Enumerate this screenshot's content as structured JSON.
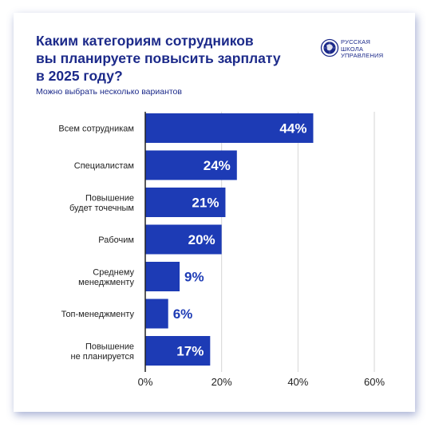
{
  "title_lines": [
    "Каким категориям сотрудников",
    "вы планируете повысить зарплату",
    "в 2025 году?"
  ],
  "subtitle": "Можно выбрать несколько вариантов",
  "logo": {
    "lines": [
      "РУССКАЯ",
      "ШКОЛА",
      "УПРАВЛЕНИЯ"
    ],
    "icon": "globe-seal-icon"
  },
  "colors": {
    "bar": "#1d3bb5",
    "title": "#1c2a8a",
    "grid": "#d6d6d6",
    "axis": "#222222",
    "bar_label_inside": "#ffffff",
    "bar_label_outside": "#1d3bb5",
    "card_shadow": "#3c50a0"
  },
  "chart_data": {
    "type": "bar",
    "orientation": "horizontal",
    "categories": [
      [
        "Всем сотрудникам"
      ],
      [
        "Специалистам"
      ],
      [
        "Повышение",
        "будет точечным"
      ],
      [
        "Рабочим"
      ],
      [
        "Среднему",
        "менеджменту"
      ],
      [
        "Топ-менеджменту"
      ],
      [
        "Повышение",
        "не планируется"
      ]
    ],
    "values": [
      44,
      24,
      21,
      20,
      9,
      6,
      17
    ],
    "data_labels": [
      "44%",
      "24%",
      "21%",
      "20%",
      "9%",
      "6%",
      "17%"
    ],
    "xlim": [
      0,
      60
    ],
    "xticks": [
      0,
      20,
      40,
      60
    ],
    "xtick_labels": [
      "0%",
      "20%",
      "40%",
      "60%"
    ],
    "grid": true
  }
}
